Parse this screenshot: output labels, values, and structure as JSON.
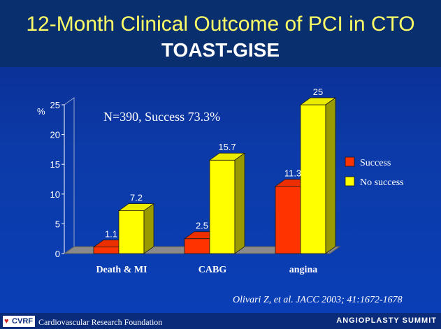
{
  "header": {
    "title": "12-Month Clinical Outcome of PCI in CTO",
    "subtitle": "TOAST-GISE"
  },
  "chart_data": {
    "type": "bar",
    "categories": [
      "Death & MI",
      "CABG",
      "angina"
    ],
    "series": [
      {
        "name": "Success",
        "values": [
          1.1,
          2.5,
          11.3
        ],
        "color": "#ff3300"
      },
      {
        "name": "No success",
        "values": [
          7.2,
          15.7,
          25
        ],
        "color": "#ffff00"
      }
    ],
    "value_labels": [
      [
        "1.1",
        "2.5",
        "11.3"
      ],
      [
        "7.2",
        "15.7",
        "25"
      ]
    ],
    "ylabel": "%",
    "ylim": [
      0,
      25
    ],
    "yticks": [
      "0",
      "5",
      "10",
      "15",
      "20",
      "25"
    ],
    "annotation": "N=390, Success 73.3%",
    "legend": [
      "Success",
      "No success"
    ],
    "legend_position": "right",
    "grid": false
  },
  "citation": "Olivari Z, et al. JACC 2003; 41:1672-1678",
  "footer": {
    "logo": "CVRF",
    "foundation": "Cardiovascular Research Foundation",
    "summit": "ANGIOPLASTY SUMMIT"
  }
}
